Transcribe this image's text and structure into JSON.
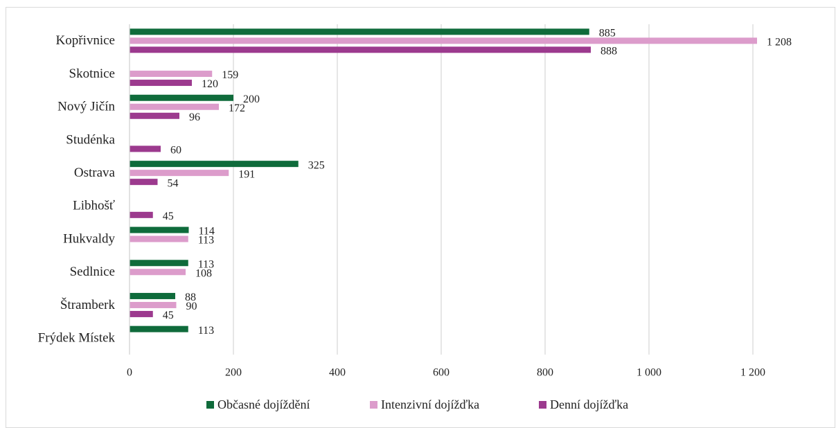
{
  "chart_data": {
    "type": "hbar",
    "categories": [
      "Kopřivnice",
      "Skotnice",
      "Nový Jičín",
      "Studénka",
      "Ostrava",
      "Libhošť",
      "Hukvaldy",
      "Sedlnice",
      "Štramberk",
      "Frýdek Místek"
    ],
    "series": [
      {
        "name": "Občasné dojíždění",
        "color": "#0f6b3b",
        "values": [
          885,
          null,
          200,
          null,
          325,
          null,
          114,
          113,
          88,
          113
        ]
      },
      {
        "name": "Intenzivní dojížďka",
        "color": "#dc9ccb",
        "values": [
          1208,
          159,
          172,
          null,
          191,
          null,
          113,
          108,
          90,
          null
        ],
        "value_labels": [
          "1 208",
          "159",
          "172",
          null,
          "191",
          null,
          "113",
          "108",
          "90",
          null
        ]
      },
      {
        "name": "Denní dojížďka",
        "color": "#9c3a8e",
        "values": [
          888,
          120,
          96,
          60,
          54,
          45,
          null,
          null,
          45,
          null
        ]
      }
    ],
    "xlim": [
      0,
      1300
    ],
    "xticks": [
      0,
      200,
      400,
      600,
      800,
      {
        "value": 1000,
        "label": "1 000"
      },
      {
        "value": 1200,
        "label": "1 200"
      }
    ],
    "grid": true,
    "legend": "bottom"
  }
}
